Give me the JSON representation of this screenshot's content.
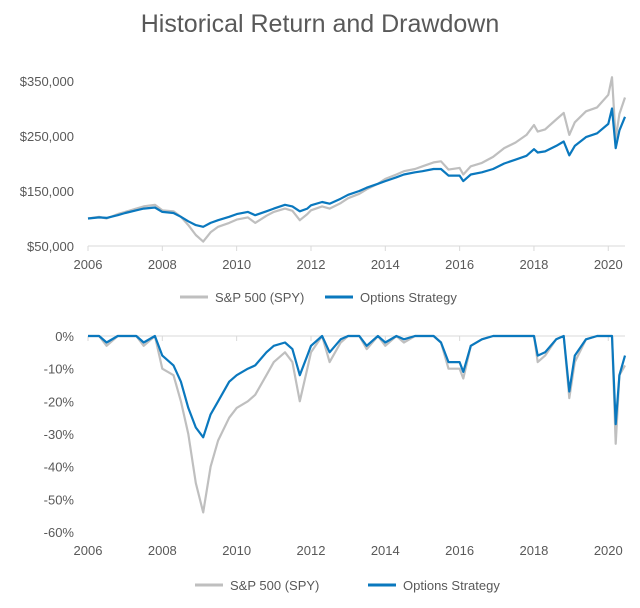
{
  "chart_title": "Historical Return and Drawdown",
  "colors": {
    "spy": "#bfbfbf",
    "strategy": "#0a78be",
    "axis": "#d9d9d9",
    "text": "#595959"
  },
  "chart_data": [
    {
      "type": "line",
      "title": "Historical Return and Drawdown",
      "xlabel": "",
      "ylabel": "",
      "xlim": [
        2006,
        2020.45
      ],
      "ylim": [
        50000,
        370000
      ],
      "x_ticks": [
        "2006",
        "2008",
        "2010",
        "2012",
        "2014",
        "2016",
        "2018",
        "2020"
      ],
      "y_ticks": [
        "$50,000",
        "$150,000",
        "$250,000",
        "$350,000"
      ],
      "y_tick_values": [
        50000,
        150000,
        250000,
        350000
      ],
      "grid": false,
      "legend": "bottom",
      "series": [
        {
          "name": "S&P 500 (SPY)",
          "color": "#bfbfbf",
          "x": [
            2006.0,
            2006.3,
            2006.5,
            2006.8,
            2007.0,
            2007.3,
            2007.5,
            2007.8,
            2008.0,
            2008.3,
            2008.5,
            2008.7,
            2008.9,
            2009.1,
            2009.3,
            2009.5,
            2009.8,
            2010.0,
            2010.3,
            2010.5,
            2010.8,
            2011.0,
            2011.3,
            2011.5,
            2011.7,
            2011.9,
            2012.0,
            2012.3,
            2012.5,
            2012.8,
            2013.0,
            2013.3,
            2013.5,
            2013.8,
            2014.0,
            2014.3,
            2014.5,
            2014.8,
            2015.0,
            2015.3,
            2015.5,
            2015.7,
            2016.0,
            2016.1,
            2016.3,
            2016.6,
            2016.9,
            2017.2,
            2017.5,
            2017.8,
            2018.0,
            2018.1,
            2018.3,
            2018.6,
            2018.8,
            2018.95,
            2019.1,
            2019.4,
            2019.7,
            2020.0,
            2020.1,
            2020.2,
            2020.3,
            2020.45
          ],
          "y": [
            100000,
            103000,
            100000,
            108000,
            112000,
            118000,
            122000,
            125000,
            115000,
            113000,
            103000,
            88000,
            70000,
            58000,
            75000,
            85000,
            92000,
            98000,
            102000,
            92000,
            105000,
            112000,
            118000,
            114000,
            97000,
            108000,
            115000,
            122000,
            118000,
            128000,
            137000,
            145000,
            153000,
            163000,
            172000,
            180000,
            186000,
            190000,
            195000,
            202000,
            204000,
            189000,
            192000,
            180000,
            195000,
            201000,
            212000,
            228000,
            238000,
            252000,
            270000,
            258000,
            262000,
            280000,
            292000,
            252000,
            275000,
            295000,
            302000,
            325000,
            357000,
            245000,
            290000,
            320000
          ]
        },
        {
          "name": "Options Strategy",
          "color": "#0a78be",
          "x": [
            2006.0,
            2006.3,
            2006.5,
            2006.8,
            2007.0,
            2007.3,
            2007.5,
            2007.8,
            2008.0,
            2008.3,
            2008.5,
            2008.7,
            2008.9,
            2009.1,
            2009.3,
            2009.5,
            2009.8,
            2010.0,
            2010.3,
            2010.5,
            2010.8,
            2011.0,
            2011.3,
            2011.5,
            2011.7,
            2011.9,
            2012.0,
            2012.3,
            2012.5,
            2012.8,
            2013.0,
            2013.3,
            2013.5,
            2013.8,
            2014.0,
            2014.3,
            2014.5,
            2014.8,
            2015.0,
            2015.3,
            2015.5,
            2015.7,
            2016.0,
            2016.1,
            2016.3,
            2016.6,
            2016.9,
            2017.2,
            2017.5,
            2017.8,
            2018.0,
            2018.1,
            2018.3,
            2018.6,
            2018.8,
            2018.95,
            2019.1,
            2019.4,
            2019.7,
            2020.0,
            2020.1,
            2020.2,
            2020.3,
            2020.45
          ],
          "y": [
            100000,
            102000,
            101000,
            106000,
            110000,
            115000,
            118000,
            120000,
            112000,
            110000,
            103000,
            95000,
            88000,
            85000,
            92000,
            97000,
            103000,
            108000,
            112000,
            106000,
            113000,
            118000,
            125000,
            122000,
            113000,
            118000,
            124000,
            130000,
            127000,
            136000,
            143000,
            150000,
            156000,
            163000,
            168000,
            175000,
            180000,
            184000,
            186000,
            190000,
            190000,
            178000,
            178000,
            168000,
            180000,
            184000,
            190000,
            200000,
            207000,
            214000,
            226000,
            220000,
            222000,
            232000,
            240000,
            215000,
            232000,
            248000,
            255000,
            272000,
            300000,
            228000,
            260000,
            285000
          ]
        }
      ]
    },
    {
      "type": "line",
      "title": "",
      "xlabel": "",
      "ylabel": "",
      "xlim": [
        2006,
        2020.45
      ],
      "ylim": [
        -60,
        0
      ],
      "x_ticks": [
        "2006",
        "2008",
        "2010",
        "2012",
        "2014",
        "2016",
        "2018",
        "2020"
      ],
      "y_ticks": [
        "0%",
        "-10%",
        "-20%",
        "-30%",
        "-40%",
        "-50%",
        "-60%"
      ],
      "y_tick_values": [
        0,
        -10,
        -20,
        -30,
        -40,
        -50,
        -60
      ],
      "grid": false,
      "legend": "bottom",
      "series": [
        {
          "name": "S&P 500 (SPY)",
          "color": "#bfbfbf",
          "x": [
            2006.0,
            2006.3,
            2006.5,
            2006.8,
            2007.0,
            2007.3,
            2007.5,
            2007.8,
            2008.0,
            2008.3,
            2008.5,
            2008.7,
            2008.9,
            2009.1,
            2009.3,
            2009.5,
            2009.8,
            2010.0,
            2010.3,
            2010.5,
            2010.8,
            2011.0,
            2011.3,
            2011.5,
            2011.7,
            2011.9,
            2012.0,
            2012.3,
            2012.5,
            2012.8,
            2013.0,
            2013.3,
            2013.5,
            2013.8,
            2014.0,
            2014.3,
            2014.5,
            2014.8,
            2015.0,
            2015.3,
            2015.5,
            2015.7,
            2016.0,
            2016.1,
            2016.3,
            2016.6,
            2016.9,
            2017.2,
            2017.5,
            2017.8,
            2018.0,
            2018.1,
            2018.3,
            2018.6,
            2018.8,
            2018.95,
            2019.1,
            2019.4,
            2019.7,
            2020.0,
            2020.1,
            2020.2,
            2020.3,
            2020.45
          ],
          "y": [
            0,
            0,
            -3,
            0,
            0,
            0,
            -3,
            0,
            -10,
            -12,
            -20,
            -30,
            -45,
            -54,
            -40,
            -32,
            -25,
            -22,
            -20,
            -18,
            -12,
            -8,
            -5,
            -8,
            -20,
            -10,
            -5,
            0,
            -8,
            -2,
            0,
            0,
            -4,
            0,
            -3,
            0,
            -2,
            0,
            0,
            0,
            -2,
            -10,
            -10,
            -13,
            -3,
            -1,
            0,
            0,
            0,
            0,
            0,
            -8,
            -6,
            -1,
            0,
            -19,
            -8,
            -1,
            0,
            0,
            0,
            -33,
            -12,
            -9
          ]
        },
        {
          "name": "Options Strategy",
          "color": "#0a78be",
          "x": [
            2006.0,
            2006.3,
            2006.5,
            2006.8,
            2007.0,
            2007.3,
            2007.5,
            2007.8,
            2008.0,
            2008.3,
            2008.5,
            2008.7,
            2008.9,
            2009.1,
            2009.3,
            2009.5,
            2009.8,
            2010.0,
            2010.3,
            2010.5,
            2010.8,
            2011.0,
            2011.3,
            2011.5,
            2011.7,
            2011.9,
            2012.0,
            2012.3,
            2012.5,
            2012.8,
            2013.0,
            2013.3,
            2013.5,
            2013.8,
            2014.0,
            2014.3,
            2014.5,
            2014.8,
            2015.0,
            2015.3,
            2015.5,
            2015.7,
            2016.0,
            2016.1,
            2016.3,
            2016.6,
            2016.9,
            2017.2,
            2017.5,
            2017.8,
            2018.0,
            2018.1,
            2018.3,
            2018.6,
            2018.8,
            2018.95,
            2019.1,
            2019.4,
            2019.7,
            2020.0,
            2020.1,
            2020.2,
            2020.3,
            2020.45
          ],
          "y": [
            0,
            0,
            -2,
            0,
            0,
            0,
            -2,
            0,
            -6,
            -9,
            -14,
            -22,
            -28,
            -31,
            -24,
            -20,
            -14,
            -12,
            -10,
            -9,
            -5,
            -3,
            -2,
            -4,
            -12,
            -6,
            -3,
            0,
            -5,
            -1,
            0,
            0,
            -3,
            0,
            -2,
            0,
            -1,
            0,
            0,
            0,
            -2,
            -8,
            -8,
            -11,
            -3,
            -1,
            0,
            0,
            0,
            0,
            0,
            -6,
            -5,
            -1,
            0,
            -17,
            -6,
            -1,
            0,
            0,
            0,
            -27,
            -12,
            -6
          ]
        }
      ]
    }
  ]
}
